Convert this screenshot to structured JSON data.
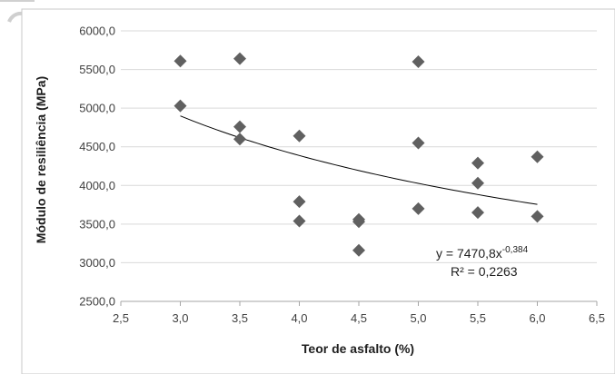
{
  "chart_data": {
    "type": "scatter",
    "title": "",
    "xlabel": "Teor de asfalto (%)",
    "ylabel": "Módulo de resiliência (MPa)",
    "xlim": [
      2.5,
      6.5
    ],
    "ylim": [
      2500,
      6000
    ],
    "x_ticks": [
      "2,5",
      "3,0",
      "3,5",
      "4,0",
      "4,5",
      "5,0",
      "5,5",
      "6,0",
      "6,5"
    ],
    "y_ticks": [
      "2500,0",
      "3000,0",
      "3500,0",
      "4000,0",
      "4500,0",
      "5000,0",
      "5500,0",
      "6000,0"
    ],
    "grid": "horizontal",
    "marker_color": "#606060",
    "trendline_color": "#000000",
    "points": [
      {
        "x": 3.0,
        "y": 5610
      },
      {
        "x": 3.0,
        "y": 5030
      },
      {
        "x": 3.5,
        "y": 5640
      },
      {
        "x": 3.5,
        "y": 4760
      },
      {
        "x": 3.5,
        "y": 4600
      },
      {
        "x": 4.0,
        "y": 4640
      },
      {
        "x": 4.0,
        "y": 3790
      },
      {
        "x": 4.0,
        "y": 3540
      },
      {
        "x": 4.5,
        "y": 3560
      },
      {
        "x": 4.5,
        "y": 3530
      },
      {
        "x": 4.5,
        "y": 3160
      },
      {
        "x": 5.0,
        "y": 5600
      },
      {
        "x": 5.0,
        "y": 4550
      },
      {
        "x": 5.0,
        "y": 3700
      },
      {
        "x": 5.5,
        "y": 4290
      },
      {
        "x": 5.5,
        "y": 4030
      },
      {
        "x": 5.5,
        "y": 3650
      },
      {
        "x": 6.0,
        "y": 4370
      },
      {
        "x": 6.0,
        "y": 3600
      }
    ],
    "trendline": {
      "type": "power",
      "coefficient": 7470.8,
      "exponent": -0.384,
      "x_range": [
        3.0,
        6.0
      ]
    },
    "annotations": {
      "equation_prefix": "y = 7470,8x",
      "equation_exponent": "-0,384",
      "r_squared": "R² = 0,2263"
    }
  }
}
